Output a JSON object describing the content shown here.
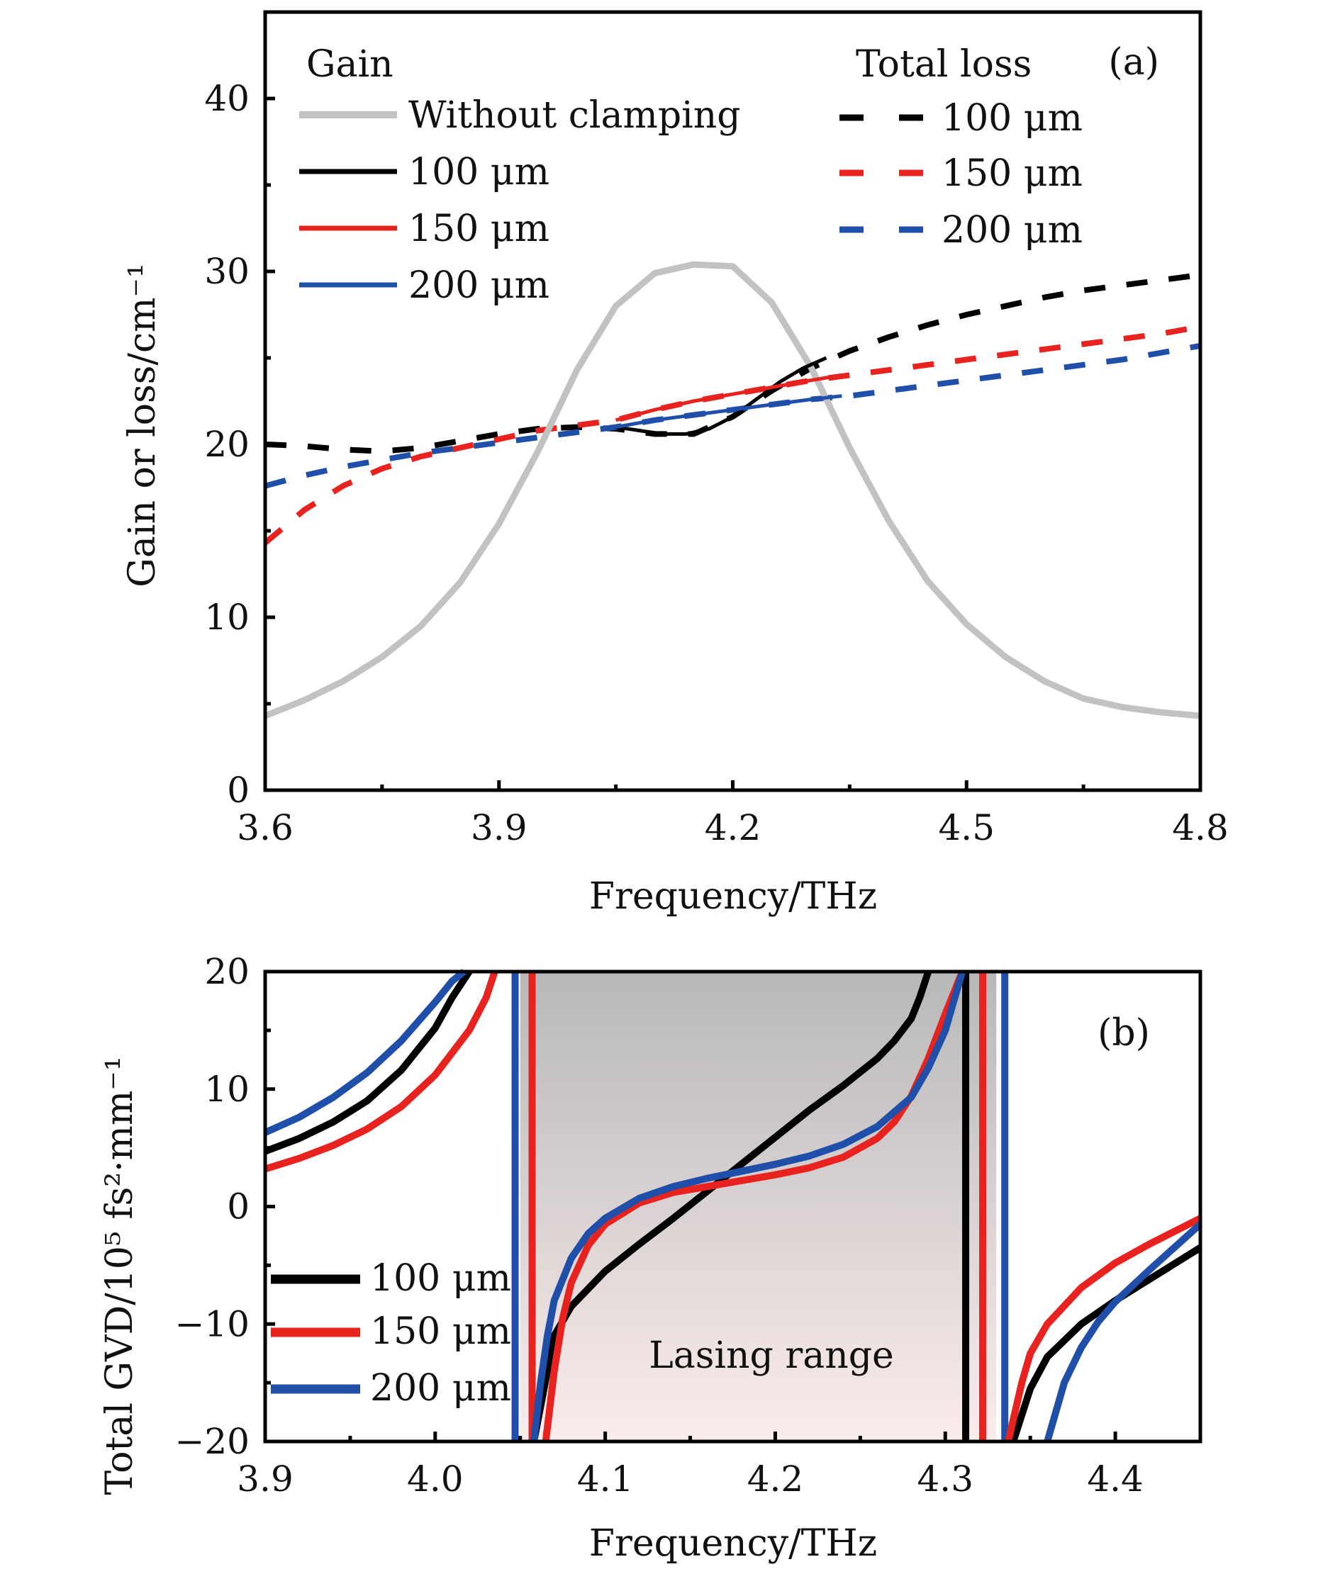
{
  "colors": {
    "gray": "#c2c2c2",
    "black": "#000000",
    "red": "#e8221e",
    "blue": "#1f4fa8",
    "shade_top": "#b8b8b8",
    "shade_bottom": "#fbecec"
  },
  "chart_data": [
    {
      "type": "line",
      "panel_label": "(a)",
      "xlabel": "Frequency/THz",
      "ylabel": "Gain or loss/cm⁻¹",
      "xlim": [
        3.6,
        4.8
      ],
      "ylim": [
        0,
        45
      ],
      "xticks": [
        3.6,
        3.9,
        4.2,
        4.5,
        4.8
      ],
      "xtick_labels": [
        "3.6",
        "3.9",
        "4.2",
        "4.5",
        "4.8"
      ],
      "yticks": [
        0,
        10,
        20,
        30,
        40
      ],
      "ytick_labels": [
        "0",
        "10",
        "20",
        "30",
        "40"
      ],
      "grid": false,
      "legend_groups": [
        {
          "title": "Gain",
          "position": "top-left",
          "entries": [
            {
              "label": "Without clamping",
              "color": "#c2c2c2",
              "style": "solid"
            },
            {
              "label": "100 μm",
              "color": "#000000",
              "style": "solid"
            },
            {
              "label": "150 μm",
              "color": "#e8221e",
              "style": "solid"
            },
            {
              "label": "200 μm",
              "color": "#1f4fa8",
              "style": "solid"
            }
          ]
        },
        {
          "title": "Total loss",
          "position": "top-right",
          "entries": [
            {
              "label": "100 μm",
              "color": "#000000",
              "style": "dashed"
            },
            {
              "label": "150 μm",
              "color": "#e8221e",
              "style": "dashed"
            },
            {
              "label": "200 μm",
              "color": "#1f4fa8",
              "style": "dashed"
            }
          ]
        }
      ],
      "series": [
        {
          "name": "Gain without clamping",
          "color": "#c2c2c2",
          "style": "solid",
          "x": [
            3.6,
            3.65,
            3.7,
            3.75,
            3.8,
            3.85,
            3.9,
            3.95,
            4.0,
            4.05,
            4.1,
            4.15,
            4.2,
            4.25,
            4.3,
            4.35,
            4.4,
            4.45,
            4.5,
            4.55,
            4.6,
            4.65,
            4.7,
            4.75,
            4.8
          ],
          "y": [
            4.3,
            5.2,
            6.3,
            7.7,
            9.5,
            12.0,
            15.4,
            19.6,
            24.3,
            28.0,
            29.9,
            30.4,
            30.3,
            28.2,
            24.5,
            19.8,
            15.6,
            12.1,
            9.6,
            7.7,
            6.3,
            5.3,
            4.8,
            4.5,
            4.3
          ]
        },
        {
          "name": "Gain 100 μm",
          "color": "#000000",
          "style": "solid",
          "x": [
            4.05,
            4.08,
            4.11,
            4.14,
            4.17,
            4.2,
            4.23,
            4.26,
            4.29,
            4.32
          ],
          "y": [
            21.0,
            20.8,
            20.6,
            20.6,
            20.9,
            21.6,
            22.6,
            23.6,
            24.4,
            25.0
          ]
        },
        {
          "name": "Gain 150 μm",
          "color": "#e8221e",
          "style": "solid",
          "x": [
            4.05,
            4.1,
            4.15,
            4.2,
            4.25,
            4.3,
            4.34
          ],
          "y": [
            21.4,
            22.0,
            22.5,
            22.9,
            23.3,
            23.7,
            24.0
          ]
        },
        {
          "name": "Gain 200 μm",
          "color": "#1f4fa8",
          "style": "solid",
          "x": [
            4.05,
            4.1,
            4.15,
            4.2,
            4.25,
            4.3,
            4.34
          ],
          "y": [
            21.0,
            21.4,
            21.7,
            22.0,
            22.3,
            22.6,
            22.8
          ]
        },
        {
          "name": "Total loss 100 μm",
          "color": "#000000",
          "style": "dashed",
          "x": [
            3.6,
            3.65,
            3.7,
            3.75,
            3.8,
            3.85,
            3.9,
            3.95,
            4.0,
            4.05,
            4.1,
            4.15,
            4.2,
            4.25,
            4.3,
            4.35,
            4.4,
            4.45,
            4.5,
            4.55,
            4.6,
            4.65,
            4.7,
            4.75,
            4.8
          ],
          "y": [
            20.0,
            19.9,
            19.7,
            19.6,
            19.8,
            20.2,
            20.6,
            20.9,
            21.0,
            20.9,
            20.6,
            20.6,
            21.6,
            23.1,
            24.4,
            25.4,
            26.2,
            26.9,
            27.5,
            28.0,
            28.5,
            28.9,
            29.2,
            29.5,
            29.8
          ]
        },
        {
          "name": "Total loss 150 μm",
          "color": "#e8221e",
          "style": "dashed",
          "x": [
            3.6,
            3.65,
            3.7,
            3.75,
            3.8,
            3.85,
            3.9,
            3.95,
            4.0,
            4.05,
            4.1,
            4.15,
            4.2,
            4.25,
            4.3,
            4.35,
            4.4,
            4.45,
            4.5,
            4.55,
            4.6,
            4.65,
            4.7,
            4.75,
            4.8
          ],
          "y": [
            14.3,
            16.2,
            17.6,
            18.6,
            19.3,
            19.8,
            20.3,
            20.8,
            21.1,
            21.4,
            22.0,
            22.5,
            22.9,
            23.3,
            23.7,
            24.0,
            24.3,
            24.6,
            24.9,
            25.2,
            25.5,
            25.8,
            26.1,
            26.4,
            26.8
          ]
        },
        {
          "name": "Total loss 200 μm",
          "color": "#1f4fa8",
          "style": "dashed",
          "x": [
            3.6,
            3.65,
            3.7,
            3.75,
            3.8,
            3.85,
            3.9,
            3.95,
            4.0,
            4.05,
            4.1,
            4.15,
            4.2,
            4.25,
            4.3,
            4.35,
            4.4,
            4.45,
            4.5,
            4.55,
            4.6,
            4.65,
            4.7,
            4.75,
            4.8
          ],
          "y": [
            17.6,
            18.2,
            18.7,
            19.1,
            19.5,
            19.8,
            20.1,
            20.4,
            20.7,
            21.0,
            21.4,
            21.7,
            22.0,
            22.3,
            22.6,
            22.8,
            23.1,
            23.4,
            23.7,
            24.0,
            24.3,
            24.6,
            24.9,
            25.3,
            25.7
          ]
        }
      ]
    },
    {
      "type": "line",
      "panel_label": "(b)",
      "xlabel": "Frequency/THz",
      "ylabel": "Total GVD/10⁵ fs²·mm⁻¹",
      "xlim": [
        3.9,
        4.45
      ],
      "ylim": [
        -20,
        20
      ],
      "xticks": [
        3.9,
        4.0,
        4.1,
        4.2,
        4.3,
        4.4
      ],
      "xtick_labels": [
        "3.9",
        "4.0",
        "4.1",
        "4.2",
        "4.3",
        "4.4"
      ],
      "yticks": [
        -20,
        -10,
        0,
        10,
        20
      ],
      "ytick_labels": [
        "−20",
        "−10",
        "0",
        "10",
        "20"
      ],
      "grid": false,
      "annotation": "Lasing range",
      "shaded_region": {
        "x_range": [
          4.05,
          4.33
        ],
        "label": "Lasing range"
      },
      "legend": {
        "position": "bottom-left",
        "entries": [
          {
            "label": "100 μm",
            "color": "#000000"
          },
          {
            "label": "150 μm",
            "color": "#e8221e"
          },
          {
            "label": "200 μm",
            "color": "#1f4fa8"
          }
        ]
      },
      "vertical_lines": [
        {
          "x": 4.047,
          "color": "#1f4fa8"
        },
        {
          "x": 4.057,
          "color": "#e8221e"
        },
        {
          "x": 4.312,
          "color": "#000000"
        },
        {
          "x": 4.322,
          "color": "#e8221e"
        },
        {
          "x": 4.335,
          "color": "#1f4fa8"
        }
      ],
      "series": [
        {
          "name": "100 μm",
          "color": "#000000",
          "segments": [
            {
              "x": [
                3.9,
                3.92,
                3.94,
                3.96,
                3.98,
                4.0,
                4.01,
                4.02
              ],
              "y": [
                4.7,
                5.8,
                7.2,
                9.0,
                11.6,
                15.2,
                17.8,
                20.0
              ]
            },
            {
              "x": [
                4.058,
                4.062,
                4.066,
                4.07,
                4.08,
                4.1,
                4.12,
                4.14,
                4.16,
                4.18,
                4.2,
                4.22,
                4.24,
                4.26,
                4.27,
                4.28,
                4.285,
                4.29
              ],
              "y": [
                -20,
                -17,
                -14,
                -11,
                -8.5,
                -5.5,
                -3.2,
                -1.0,
                1.3,
                3.6,
                5.9,
                8.2,
                10.3,
                12.6,
                14.1,
                16.0,
                17.8,
                20.0
              ]
            },
            {
              "x": [
                4.34,
                4.35,
                4.36,
                4.38,
                4.4,
                4.42,
                4.45
              ],
              "y": [
                -20,
                -15.5,
                -12.8,
                -10.0,
                -8.0,
                -6.2,
                -3.5
              ]
            }
          ]
        },
        {
          "name": "150 μm",
          "color": "#e8221e",
          "segments": [
            {
              "x": [
                3.9,
                3.92,
                3.94,
                3.96,
                3.98,
                4.0,
                4.02,
                4.03,
                4.035
              ],
              "y": [
                3.2,
                4.1,
                5.2,
                6.6,
                8.5,
                11.2,
                15.0,
                17.8,
                20.0
              ]
            },
            {
              "x": [
                4.065,
                4.07,
                4.075,
                4.08,
                4.09,
                4.1,
                4.12,
                4.14,
                4.16,
                4.18,
                4.2,
                4.22,
                4.24,
                4.26,
                4.27,
                4.28,
                4.29,
                4.3,
                4.31
              ],
              "y": [
                -20,
                -14.0,
                -9.5,
                -6.5,
                -3.3,
                -1.5,
                0.3,
                1.2,
                1.7,
                2.2,
                2.7,
                3.3,
                4.2,
                5.8,
                7.2,
                9.4,
                12.6,
                16.4,
                20.0
              ]
            },
            {
              "x": [
                4.337,
                4.345,
                4.35,
                4.36,
                4.38,
                4.4,
                4.42,
                4.45
              ],
              "y": [
                -20,
                -15.0,
                -12.5,
                -10.0,
                -6.9,
                -4.8,
                -3.2,
                -1.0
              ]
            }
          ]
        },
        {
          "name": "200 μm",
          "color": "#1f4fa8",
          "segments": [
            {
              "x": [
                3.9,
                3.92,
                3.94,
                3.96,
                3.98,
                4.0,
                4.01,
                4.017
              ],
              "y": [
                6.3,
                7.6,
                9.3,
                11.4,
                14.1,
                17.4,
                19.2,
                20.0
              ]
            },
            {
              "x": [
                4.058,
                4.062,
                4.066,
                4.07,
                4.08,
                4.09,
                4.1,
                4.12,
                4.14,
                4.16,
                4.18,
                4.2,
                4.22,
                4.24,
                4.26,
                4.28,
                4.29,
                4.3,
                4.31
              ],
              "y": [
                -20,
                -15,
                -11,
                -8.0,
                -4.4,
                -2.3,
                -1.0,
                0.7,
                1.7,
                2.4,
                3.0,
                3.6,
                4.3,
                5.3,
                6.8,
                9.3,
                11.8,
                15.0,
                20.0
              ]
            },
            {
              "x": [
                4.36,
                4.37,
                4.38,
                4.39,
                4.4,
                4.42,
                4.45
              ],
              "y": [
                -20,
                -15.0,
                -12.0,
                -9.8,
                -8.1,
                -5.4,
                -1.5
              ]
            }
          ]
        }
      ]
    }
  ]
}
